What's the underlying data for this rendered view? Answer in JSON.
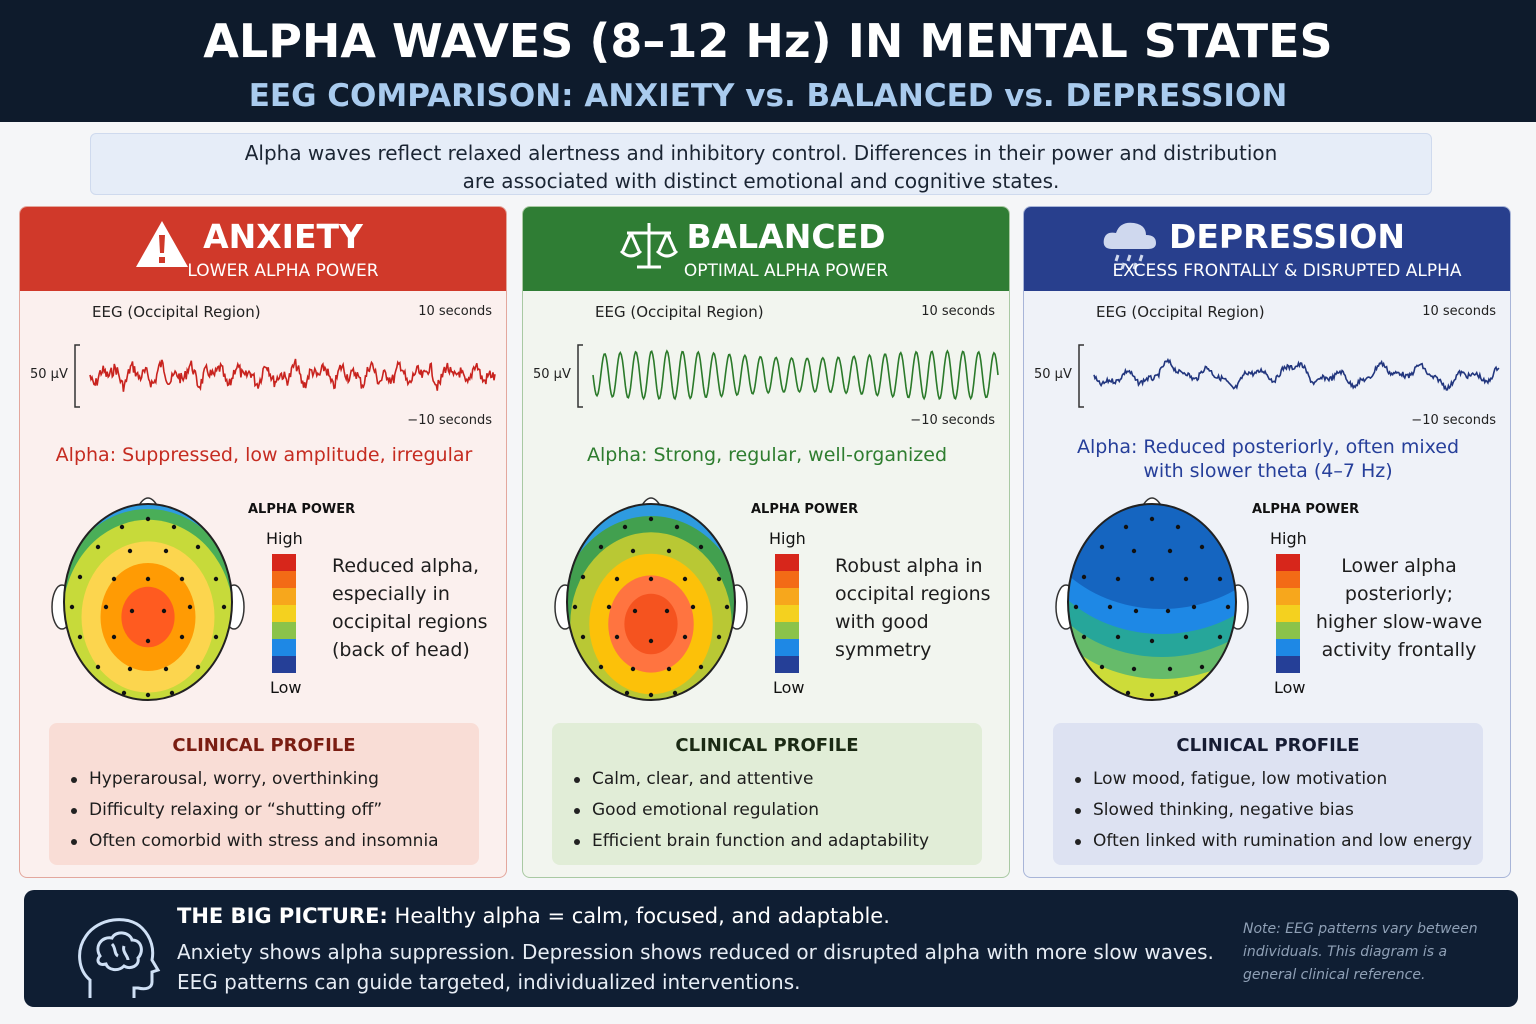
{
  "header": {
    "title": "ALPHA WAVES (8–12 Hz) IN MENTAL STATES",
    "subtitle": "EEG COMPARISON: ANXIETY vs. BALANCED vs. DEPRESSION"
  },
  "intro": "Alpha waves reflect relaxed alertness and inhibitory control. Differences in their power and distribution are associated with distinct emotional and cognitive states.",
  "panels": [
    {
      "title": "ANXIETY",
      "subtitle": "LOWER ALPHA POWER",
      "eeg_label": "EEG (Occipital Region)",
      "duration": "10 seconds",
      "scale": "50 µV",
      "duration_bottom": "−10 seconds",
      "alpha_note": "Alpha: Suppressed, low amplitude, irregular",
      "legend_title": "ALPHA POWER",
      "legend_high": "High",
      "legend_low": "Low",
      "description": "Reduced alpha, especially in occipital regions (back of head)",
      "profile_title": "CLINICAL PROFILE",
      "profile_items": [
        "Hyperarousal, worry, overthinking",
        "Difficulty relaxing or “shutting off”",
        "Often comorbid with stress and insomnia"
      ]
    },
    {
      "title": "BALANCED",
      "subtitle": "OPTIMAL ALPHA POWER",
      "eeg_label": "EEG (Occipital Region)",
      "duration": "10 seconds",
      "scale": "50 µV",
      "duration_bottom": "−10 seconds",
      "alpha_note": "Alpha: Strong, regular, well-organized",
      "legend_title": "ALPHA POWER",
      "legend_high": "High",
      "legend_low": "Low",
      "description": "Robust alpha in occipital regions with good symmetry",
      "profile_title": "CLINICAL PROFILE",
      "profile_items": [
        "Calm, clear, and attentive",
        "Good emotional regulation",
        "Efficient brain function and adaptability"
      ]
    },
    {
      "title": "DEPRESSION",
      "subtitle": "EXCESS FRONTALLY & DISRUPTED ALPHA",
      "eeg_label": "EEG (Occipital Region)",
      "duration": "10 seconds",
      "scale": "50 µV",
      "duration_bottom": "−10 seconds",
      "alpha_note": "Alpha: Reduced posteriorly, often mixed with slower theta (4–7 Hz)",
      "legend_title": "ALPHA POWER",
      "legend_high": "High",
      "legend_low": "Low",
      "description": "Lower alpha posteriorly; higher slow-wave activity frontally",
      "profile_title": "CLINICAL PROFILE",
      "profile_items": [
        "Low mood, fatigue, low motivation",
        "Slowed thinking, negative bias",
        "Often linked with rumination and low energy"
      ]
    }
  ],
  "footer": {
    "heading": "THE BIG PICTURE:",
    "heading_text": "Healthy alpha = calm, focused, and adaptable.",
    "body": [
      "Anxiety shows alpha suppression. Depression shows reduced or disrupted alpha with more slow waves.",
      "EEG patterns can guide targeted, individualized interventions."
    ],
    "note": "Note: EEG patterns vary between individuals. This diagram is a general clinical reference."
  }
}
